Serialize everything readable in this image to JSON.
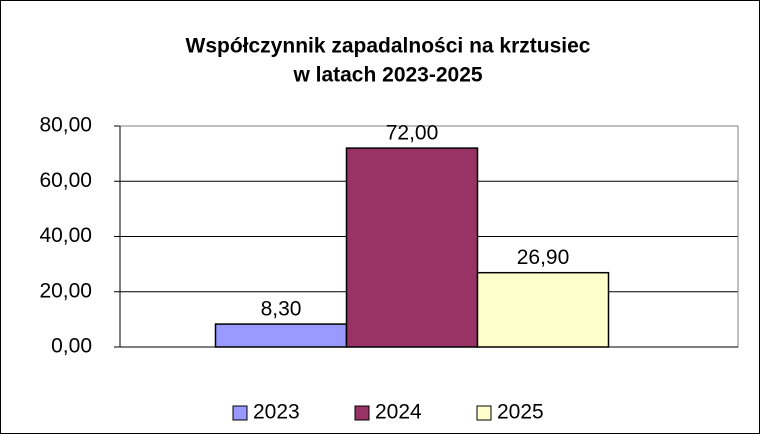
{
  "chart_data": {
    "type": "bar",
    "title": [
      "Współczynnik zapadalności na krztusiec",
      "w latach 2023-2025"
    ],
    "categories": [
      null
    ],
    "series": [
      {
        "name": "2023",
        "color": "#9999ff",
        "values": [
          8.3
        ],
        "value_labels": [
          "8,30"
        ]
      },
      {
        "name": "2024",
        "color": "#993366",
        "values": [
          72.0
        ],
        "value_labels": [
          "72,00"
        ]
      },
      {
        "name": "2025",
        "color": "#ffffcc",
        "values": [
          26.9
        ],
        "value_labels": [
          "26,90"
        ]
      }
    ],
    "ylim": [
      0,
      80
    ],
    "yticks": [
      {
        "value": 0,
        "label": "0,00"
      },
      {
        "value": 20,
        "label": "20,00"
      },
      {
        "value": 40,
        "label": "40,00"
      },
      {
        "value": 60,
        "label": "60,00"
      },
      {
        "value": 80,
        "label": "80,00"
      }
    ],
    "grid": true,
    "legend": "bottom"
  }
}
